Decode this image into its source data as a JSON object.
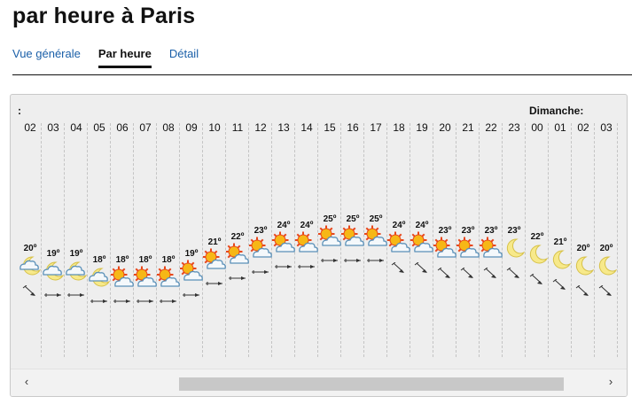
{
  "page": {
    "title": "par heure à Paris"
  },
  "tabs": [
    {
      "label": "Vue générale",
      "active": false
    },
    {
      "label": "Par heure",
      "active": true
    },
    {
      "label": "Détail",
      "active": false
    }
  ],
  "forecast": {
    "day_start_label": ":",
    "day_label": "Dimanche:",
    "hours": [
      {
        "hour": "02",
        "temp": "20º",
        "icon": "moon-cloud-icon",
        "wind": "wind-se-arrow-icon"
      },
      {
        "hour": "03",
        "temp": "19º",
        "icon": "moon-cloud-icon",
        "wind": "wind-e-arrow-icon"
      },
      {
        "hour": "04",
        "temp": "19º",
        "icon": "moon-cloud-icon",
        "wind": "wind-e-arrow-icon"
      },
      {
        "hour": "05",
        "temp": "18º",
        "icon": "moon-cloud-icon",
        "wind": "wind-e-arrow-icon"
      },
      {
        "hour": "06",
        "temp": "18º",
        "icon": "sun-cloud-icon",
        "wind": "wind-e-arrow-icon"
      },
      {
        "hour": "07",
        "temp": "18º",
        "icon": "sun-cloud-icon",
        "wind": "wind-e-arrow-icon"
      },
      {
        "hour": "08",
        "temp": "18º",
        "icon": "sun-cloud-icon",
        "wind": "wind-e-arrow-icon"
      },
      {
        "hour": "09",
        "temp": "19º",
        "icon": "sun-cloud-icon",
        "wind": "wind-e-arrow-icon"
      },
      {
        "hour": "10",
        "temp": "21º",
        "icon": "sun-cloud-icon",
        "wind": "wind-e-arrow-icon"
      },
      {
        "hour": "11",
        "temp": "22º",
        "icon": "sun-cloud-icon",
        "wind": "wind-e-arrow-icon"
      },
      {
        "hour": "12",
        "temp": "23º",
        "icon": "sun-cloud-icon",
        "wind": "wind-e-arrow-icon"
      },
      {
        "hour": "13",
        "temp": "24º",
        "icon": "sun-cloud-icon",
        "wind": "wind-e-arrow-icon"
      },
      {
        "hour": "14",
        "temp": "24º",
        "icon": "sun-cloud-icon",
        "wind": "wind-e-arrow-icon"
      },
      {
        "hour": "15",
        "temp": "25º",
        "icon": "sun-cloud-icon",
        "wind": "wind-e-arrow-icon"
      },
      {
        "hour": "16",
        "temp": "25º",
        "icon": "sun-cloud-icon",
        "wind": "wind-e-arrow-icon"
      },
      {
        "hour": "17",
        "temp": "25º",
        "icon": "sun-cloud-icon",
        "wind": "wind-e-arrow-icon"
      },
      {
        "hour": "18",
        "temp": "24º",
        "icon": "sun-cloud-icon",
        "wind": "wind-se-arrow-icon"
      },
      {
        "hour": "19",
        "temp": "24º",
        "icon": "sun-cloud-icon",
        "wind": "wind-se-arrow-icon"
      },
      {
        "hour": "20",
        "temp": "23º",
        "icon": "sun-cloud-icon",
        "wind": "wind-se-arrow-icon"
      },
      {
        "hour": "21",
        "temp": "23º",
        "icon": "sun-cloud-icon",
        "wind": "wind-se-arrow-icon"
      },
      {
        "hour": "22",
        "temp": "23º",
        "icon": "sun-cloud-icon",
        "wind": "wind-se-arrow-icon"
      },
      {
        "hour": "23",
        "temp": "23º",
        "icon": "moon-icon",
        "wind": "wind-se-arrow-icon"
      },
      {
        "hour": "00",
        "temp": "22º",
        "icon": "moon-icon",
        "wind": "wind-se-arrow-icon"
      },
      {
        "hour": "01",
        "temp": "21º",
        "icon": "moon-icon",
        "wind": "wind-se-arrow-icon"
      },
      {
        "hour": "02",
        "temp": "20º",
        "icon": "moon-icon",
        "wind": "wind-se-arrow-icon"
      },
      {
        "hour": "03",
        "temp": "20º",
        "icon": "moon-icon",
        "wind": "wind-se-arrow-icon"
      }
    ]
  },
  "scrollbar": {
    "left_glyph": "‹",
    "right_glyph": "›"
  },
  "colors": {
    "link": "#1a5fa8",
    "panel_bg": "#eeeeee",
    "sun": "#f6b716",
    "sun_rays": "#e8471b",
    "moon": "#f7e98a",
    "cloud": "#f4f8fb",
    "cloud_stroke": "#5a90b8",
    "scroll_thumb": "#c8c8c8"
  }
}
